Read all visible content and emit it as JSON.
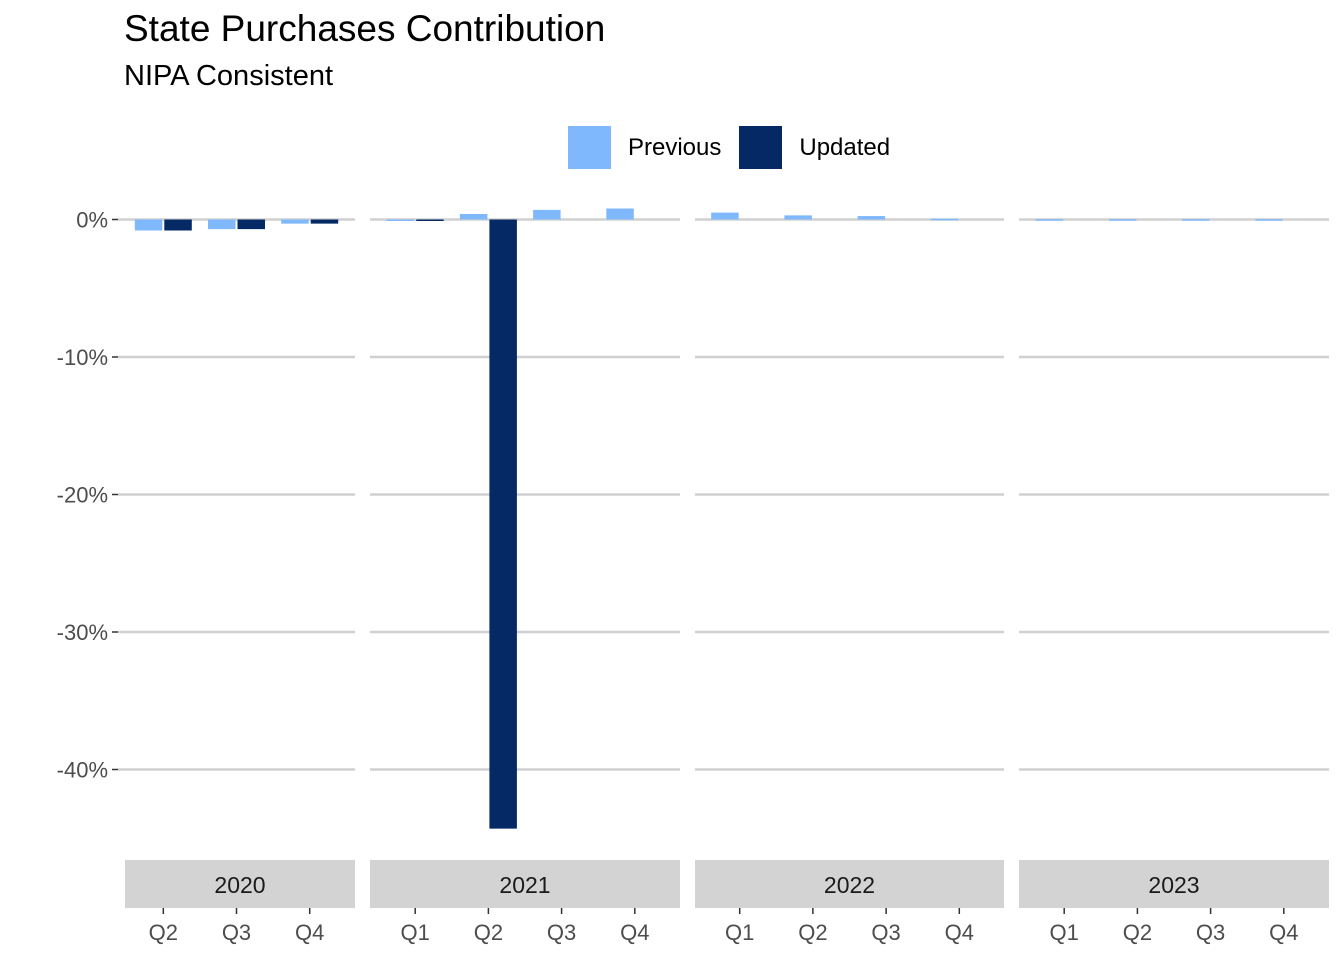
{
  "chart_data": {
    "type": "bar",
    "title": "State Purchases Contribution",
    "subtitle": "NIPA Consistent",
    "xlabel": "",
    "ylabel": "",
    "ylim": [
      -46,
      2
    ],
    "y_ticks": [
      0,
      -10,
      -20,
      -30,
      -40
    ],
    "y_tick_labels": [
      "0%",
      "-10%",
      "-20%",
      "-30%",
      "-40%"
    ],
    "grid": "horizontal",
    "legend_position": "top",
    "colors": {
      "Previous": "#7fb8fc",
      "Updated": "#042965"
    },
    "series_names": [
      "Previous",
      "Updated"
    ],
    "facets": [
      {
        "label": "2020",
        "categories": [
          "Q2",
          "Q3",
          "Q4"
        ],
        "series": [
          {
            "name": "Previous",
            "values": [
              -0.8,
              -0.7,
              -0.3
            ]
          },
          {
            "name": "Updated",
            "values": [
              -0.8,
              -0.7,
              -0.3
            ]
          }
        ]
      },
      {
        "label": "2021",
        "categories": [
          "Q1",
          "Q2",
          "Q3",
          "Q4"
        ],
        "series": [
          {
            "name": "Previous",
            "values": [
              -0.1,
              0.4,
              0.7,
              0.8
            ]
          },
          {
            "name": "Updated",
            "values": [
              -0.1,
              -44.3,
              null,
              null
            ]
          }
        ]
      },
      {
        "label": "2022",
        "categories": [
          "Q1",
          "Q2",
          "Q3",
          "Q4"
        ],
        "series": [
          {
            "name": "Previous",
            "values": [
              0.5,
              0.3,
              0.25,
              0.05
            ]
          },
          {
            "name": "Updated",
            "values": [
              null,
              null,
              null,
              null
            ]
          }
        ]
      },
      {
        "label": "2023",
        "categories": [
          "Q1",
          "Q2",
          "Q3",
          "Q4"
        ],
        "series": [
          {
            "name": "Previous",
            "values": [
              0.02,
              0.02,
              0.02,
              0.02
            ]
          },
          {
            "name": "Updated",
            "values": [
              null,
              null,
              null,
              null
            ]
          }
        ]
      }
    ]
  }
}
